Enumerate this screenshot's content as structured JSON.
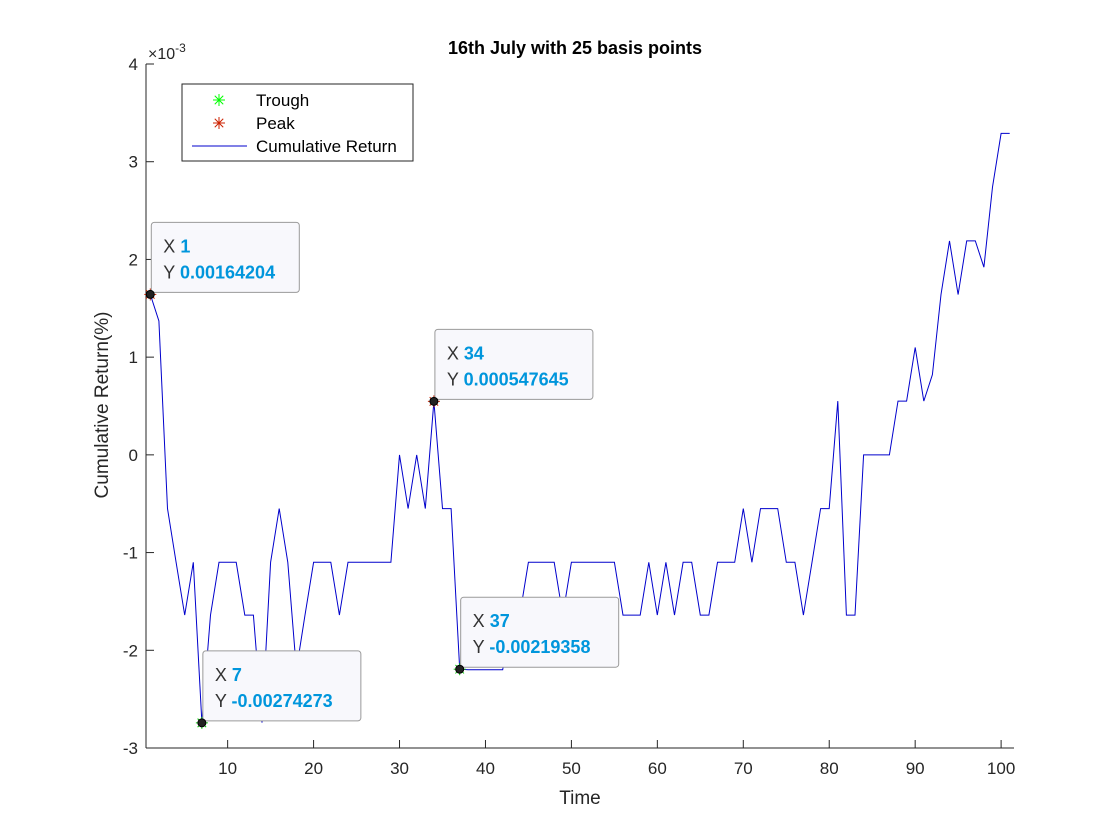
{
  "chart_data": {
    "type": "line",
    "title": "16th July with 25 basis points",
    "xlabel": "Time",
    "ylabel": "Cumulative Return(%)",
    "y_exponent_label": "×10",
    "y_exponent_power": "-3",
    "xlim": [
      0.5,
      101.5
    ],
    "ylim": [
      -0.003,
      0.004
    ],
    "x_ticks": [
      10,
      20,
      30,
      40,
      50,
      60,
      70,
      80,
      90,
      100
    ],
    "x_tick_labels": [
      "10",
      "20",
      "30",
      "40",
      "50",
      "60",
      "70",
      "80",
      "90",
      "100"
    ],
    "y_ticks": [
      -0.003,
      -0.002,
      -0.001,
      0,
      0.001,
      0.002,
      0.003,
      0.004
    ],
    "y_tick_labels": [
      "-3",
      "-2",
      "-1",
      "0",
      "1",
      "2",
      "3",
      "4"
    ],
    "grid": false,
    "legend_position": "top-left",
    "legend": [
      {
        "label": "Trough",
        "marker": "*",
        "color": "#00ff00"
      },
      {
        "label": "Peak",
        "marker": "*",
        "color": "#cc2200"
      },
      {
        "label": "Cumulative Return",
        "marker": "line",
        "color": "#0000cc"
      }
    ],
    "series": [
      {
        "name": "Cumulative Return",
        "color": "#0000cc",
        "x": [
          1,
          2,
          3,
          4,
          5,
          6,
          7,
          8,
          9,
          10,
          11,
          12,
          13,
          14,
          15,
          16,
          17,
          18,
          19,
          20,
          21,
          22,
          23,
          24,
          25,
          26,
          27,
          28,
          29,
          30,
          31,
          32,
          33,
          34,
          35,
          36,
          37,
          38,
          39,
          40,
          41,
          42,
          43,
          44,
          45,
          46,
          47,
          48,
          49,
          50,
          51,
          52,
          53,
          54,
          55,
          56,
          57,
          58,
          59,
          60,
          61,
          62,
          63,
          64,
          65,
          66,
          67,
          68,
          69,
          70,
          71,
          72,
          73,
          74,
          75,
          76,
          77,
          78,
          79,
          80,
          81,
          82,
          83,
          84,
          85,
          86,
          87,
          88,
          89,
          90,
          91,
          92,
          93,
          94,
          95,
          96,
          97,
          98,
          99,
          100,
          101
        ],
        "values": [
          0.00164204,
          0.00137,
          -0.00055,
          -0.0011,
          -0.00164,
          -0.0011,
          -0.00274273,
          -0.00164,
          -0.0011,
          -0.0011,
          -0.0011,
          -0.00164,
          -0.00164,
          -0.00274,
          -0.0011,
          -0.00055,
          -0.0011,
          -0.0022,
          -0.00164,
          -0.0011,
          -0.0011,
          -0.0011,
          -0.00164,
          -0.0011,
          -0.0011,
          -0.0011,
          -0.0011,
          -0.0011,
          -0.0011,
          0,
          -0.00055,
          0,
          -0.00055,
          0.000547645,
          -0.00055,
          -0.00055,
          -0.00219358,
          -0.0022,
          -0.0022,
          -0.0022,
          -0.0022,
          -0.0022,
          -0.00164,
          -0.00164,
          -0.0011,
          -0.0011,
          -0.0011,
          -0.0011,
          -0.00164,
          -0.0011,
          -0.0011,
          -0.0011,
          -0.0011,
          -0.0011,
          -0.0011,
          -0.00164,
          -0.00164,
          -0.00164,
          -0.0011,
          -0.00164,
          -0.0011,
          -0.00164,
          -0.0011,
          -0.0011,
          -0.00164,
          -0.00164,
          -0.0011,
          -0.0011,
          -0.0011,
          -0.00055,
          -0.0011,
          -0.00055,
          -0.00055,
          -0.00055,
          -0.0011,
          -0.0011,
          -0.00164,
          -0.0011,
          -0.00055,
          -0.00055,
          0.00055,
          -0.00164,
          -0.00164,
          0,
          0,
          0,
          0,
          0.00055,
          0.00055,
          0.0011,
          0.00055,
          0.00082,
          0.00164,
          0.00219,
          0.00164,
          0.00219,
          0.00219,
          0.00192,
          0.00274,
          0.00329,
          0.00329
        ]
      }
    ],
    "troughs": [
      {
        "x": 7,
        "y": -0.00274273
      },
      {
        "x": 37,
        "y": -0.00219358
      }
    ],
    "peaks": [
      {
        "x": 1,
        "y": 0.00164204
      },
      {
        "x": 34,
        "y": 0.000547645
      }
    ],
    "datatips": [
      {
        "x_label": "X",
        "y_label": "Y",
        "x_value": "1",
        "y_value": "0.00164204",
        "x": 1,
        "y": 0.00164204,
        "side": "right-up"
      },
      {
        "x_label": "X",
        "y_label": "Y",
        "x_value": "34",
        "y_value": "0.000547645",
        "x": 34,
        "y": 0.000547645,
        "side": "right-up"
      },
      {
        "x_label": "X",
        "y_label": "Y",
        "x_value": "7",
        "y_value": "-0.00274273",
        "x": 7,
        "y": -0.00274273,
        "side": "right-up"
      },
      {
        "x_label": "X",
        "y_label": "Y",
        "x_value": "37",
        "y_value": "-0.00219358",
        "x": 37,
        "y": -0.00219358,
        "side": "right-up"
      }
    ]
  }
}
